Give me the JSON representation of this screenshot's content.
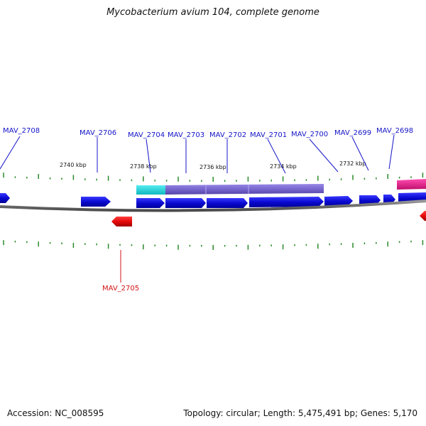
{
  "title": "Mycobacterium avium 104, complete genome",
  "footer": {
    "accession": "Accession: NC_008595",
    "summary": "Topology: circular; Length: 5,475,491 bp; Genes: 5,170"
  },
  "colors": {
    "forward_gene": "#0a0ad2",
    "reverse_gene": "#e60a0a",
    "label_forward": "#1414c8",
    "label_reverse": "#d21414",
    "tick": "#2a8a2a",
    "backbone": "#6e6e6e",
    "cyan_feature": "#19d3d8",
    "purple_feature": "#7766cc",
    "pink_feature": "#e0208c"
  },
  "ruler_labels": [
    "2740 kbp",
    "2738 kbp",
    "2736 kbp",
    "2734 kbp",
    "2732 kbp"
  ],
  "gene_labels": {
    "forward": [
      "MAV_2708",
      "MAV_2706",
      "MAV_2704",
      "MAV_2703",
      "MAV_2702",
      "MAV_2701",
      "MAV_2700",
      "MAV_2699",
      "MAV_2698"
    ],
    "reverse": [
      "MAV_2705"
    ]
  }
}
